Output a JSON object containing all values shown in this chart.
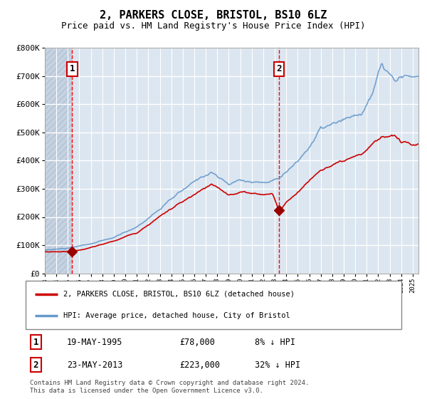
{
  "title": "2, PARKERS CLOSE, BRISTOL, BS10 6LZ",
  "subtitle": "Price paid vs. HM Land Registry's House Price Index (HPI)",
  "sale1_date": "19-MAY-1995",
  "sale1_price": 78000,
  "sale1_label": "8% ↓ HPI",
  "sale1_year": 1995.38,
  "sale2_date": "23-MAY-2013",
  "sale2_price": 223000,
  "sale2_label": "32% ↓ HPI",
  "sale2_year": 2013.38,
  "legend_line1": "2, PARKERS CLOSE, BRISTOL, BS10 6LZ (detached house)",
  "legend_line2": "HPI: Average price, detached house, City of Bristol",
  "footnote": "Contains HM Land Registry data © Crown copyright and database right 2024.\nThis data is licensed under the Open Government Licence v3.0.",
  "hpi_color": "#6699cc",
  "price_color": "#cc0000",
  "marker_color": "#990000",
  "vline_color": "#ff0000",
  "bg_color": "#dce6f0",
  "ylim": [
    0,
    800000
  ],
  "ytick_values": [
    0,
    100000,
    200000,
    300000,
    400000,
    500000,
    600000,
    700000,
    800000
  ],
  "ytick_labels": [
    "£0",
    "£100K",
    "£200K",
    "£300K",
    "£400K",
    "£500K",
    "£600K",
    "£700K",
    "£800K"
  ]
}
